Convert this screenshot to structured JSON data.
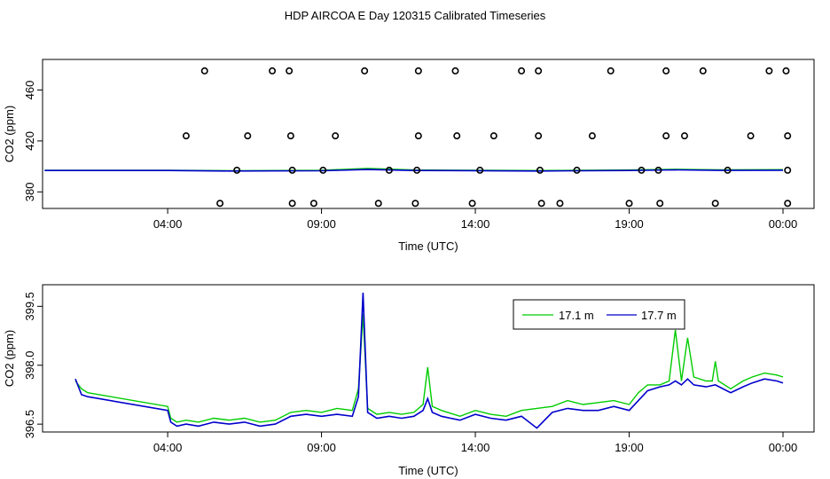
{
  "title": "HDP AIRCOA E  Day 120315  Calibrated Timeseries",
  "chart_data": [
    {
      "type": "scatter",
      "xlabel": "Time (UTC)",
      "ylabel": "CO2 (ppm)",
      "xlim": [
        0,
        24.2
      ],
      "ylim": [
        367,
        484
      ],
      "xticks": [
        {
          "v": 4,
          "label": "04:00"
        },
        {
          "v": 9,
          "label": "09:00"
        },
        {
          "v": 14,
          "label": "14:00"
        },
        {
          "v": 19,
          "label": "19:00"
        },
        {
          "v": 24,
          "label": "00:00"
        }
      ],
      "yticks": [
        {
          "v": 380,
          "label": "380"
        },
        {
          "v": 420,
          "label": "420"
        },
        {
          "v": 460,
          "label": "460"
        }
      ],
      "series": [
        {
          "color": "#00cc00",
          "points": [
            [
              0,
              397.0
            ],
            [
              4,
              397.0
            ],
            [
              6,
              396.7
            ],
            [
              9,
              397.0
            ],
            [
              10.5,
              398.5
            ],
            [
              12,
              397.2
            ],
            [
              14,
              397.0
            ],
            [
              16,
              396.8
            ],
            [
              19,
              397.2
            ],
            [
              20.5,
              397.8
            ],
            [
              22,
              397.3
            ],
            [
              24,
              397.5
            ]
          ]
        },
        {
          "color": "#0000cc",
          "points": [
            [
              0,
              396.8
            ],
            [
              4,
              396.8
            ],
            [
              6,
              396.4
            ],
            [
              9,
              396.6
            ],
            [
              10.5,
              397.6
            ],
            [
              12,
              396.8
            ],
            [
              14,
              396.7
            ],
            [
              16,
              396.4
            ],
            [
              19,
              396.8
            ],
            [
              20.5,
              397.3
            ],
            [
              22,
              396.9
            ],
            [
              24,
              397.0
            ]
          ]
        }
      ],
      "outliers": [
        [
          5.2,
          475
        ],
        [
          7.4,
          475
        ],
        [
          7.95,
          475
        ],
        [
          10.4,
          475
        ],
        [
          12.15,
          475
        ],
        [
          13.35,
          475
        ],
        [
          15.5,
          475
        ],
        [
          16.05,
          475
        ],
        [
          18.4,
          475
        ],
        [
          20.2,
          475
        ],
        [
          21.4,
          475
        ],
        [
          23.55,
          475
        ],
        [
          24.1,
          475
        ],
        [
          4.6,
          424
        ],
        [
          6.6,
          424
        ],
        [
          8.0,
          424
        ],
        [
          9.45,
          424
        ],
        [
          12.15,
          424
        ],
        [
          13.4,
          424
        ],
        [
          14.6,
          424
        ],
        [
          16.05,
          424
        ],
        [
          17.8,
          424
        ],
        [
          20.2,
          424
        ],
        [
          20.8,
          424
        ],
        [
          22.95,
          424
        ],
        [
          24.15,
          424
        ],
        [
          6.25,
          397
        ],
        [
          8.05,
          397
        ],
        [
          9.05,
          397
        ],
        [
          11.2,
          397
        ],
        [
          12.1,
          397
        ],
        [
          14.15,
          397
        ],
        [
          16.1,
          397
        ],
        [
          17.3,
          397
        ],
        [
          19.4,
          397
        ],
        [
          19.95,
          397
        ],
        [
          22.2,
          397
        ],
        [
          24.15,
          397
        ],
        [
          5.7,
          371
        ],
        [
          8.05,
          371
        ],
        [
          8.75,
          371
        ],
        [
          10.85,
          371
        ],
        [
          12.05,
          371
        ],
        [
          13.9,
          371
        ],
        [
          16.15,
          371
        ],
        [
          16.75,
          371
        ],
        [
          19.0,
          371
        ],
        [
          20.0,
          371
        ],
        [
          21.8,
          371
        ],
        [
          24.15,
          371
        ]
      ]
    },
    {
      "type": "line",
      "xlabel": "Time (UTC)",
      "ylabel": "CO2 (ppm)",
      "xlim": [
        0,
        24.2
      ],
      "ylim": [
        396.3,
        400.05
      ],
      "xticks": [
        {
          "v": 4,
          "label": "04:00"
        },
        {
          "v": 9,
          "label": "09:00"
        },
        {
          "v": 14,
          "label": "14:00"
        },
        {
          "v": 19,
          "label": "19:00"
        },
        {
          "v": 24,
          "label": "00:00"
        }
      ],
      "yticks": [
        {
          "v": 396.5,
          "label": "396.5"
        },
        {
          "v": 398.0,
          "label": "398.0"
        },
        {
          "v": 399.5,
          "label": "399.5"
        }
      ],
      "legend_position": "top-right",
      "series": [
        {
          "name": "17.1 m",
          "color": "#00cc00",
          "points": [
            [
              1.0,
              397.6
            ],
            [
              1.2,
              397.4
            ],
            [
              1.4,
              397.3
            ],
            [
              4.0,
              396.95
            ],
            [
              4.1,
              396.65
            ],
            [
              4.3,
              396.55
            ],
            [
              4.6,
              396.6
            ],
            [
              5.0,
              396.55
            ],
            [
              5.5,
              396.65
            ],
            [
              6.0,
              396.6
            ],
            [
              6.5,
              396.65
            ],
            [
              7.0,
              396.55
            ],
            [
              7.5,
              396.6
            ],
            [
              8.0,
              396.8
            ],
            [
              8.5,
              396.85
            ],
            [
              9.0,
              396.8
            ],
            [
              9.5,
              396.9
            ],
            [
              10.0,
              396.85
            ],
            [
              10.2,
              397.4
            ],
            [
              10.35,
              399.3
            ],
            [
              10.5,
              396.9
            ],
            [
              10.8,
              396.75
            ],
            [
              11.2,
              396.8
            ],
            [
              11.6,
              396.75
            ],
            [
              12.0,
              396.8
            ],
            [
              12.3,
              397.0
            ],
            [
              12.45,
              397.95
            ],
            [
              12.6,
              396.95
            ],
            [
              12.9,
              396.85
            ],
            [
              13.5,
              396.7
            ],
            [
              14.0,
              396.85
            ],
            [
              14.5,
              396.75
            ],
            [
              15.0,
              396.7
            ],
            [
              15.5,
              396.85
            ],
            [
              16.0,
              396.9
            ],
            [
              16.5,
              396.95
            ],
            [
              17.0,
              397.1
            ],
            [
              17.5,
              397.0
            ],
            [
              18.0,
              397.05
            ],
            [
              18.5,
              397.1
            ],
            [
              19.0,
              397.0
            ],
            [
              19.3,
              397.3
            ],
            [
              19.6,
              397.5
            ],
            [
              20.0,
              397.5
            ],
            [
              20.3,
              397.6
            ],
            [
              20.5,
              398.9
            ],
            [
              20.7,
              397.6
            ],
            [
              20.9,
              398.7
            ],
            [
              21.1,
              397.7
            ],
            [
              21.5,
              397.6
            ],
            [
              21.7,
              397.6
            ],
            [
              21.8,
              398.1
            ],
            [
              21.9,
              397.6
            ],
            [
              22.3,
              397.4
            ],
            [
              22.7,
              397.6
            ],
            [
              23.0,
              397.7
            ],
            [
              23.4,
              397.8
            ],
            [
              23.8,
              397.75
            ],
            [
              24.0,
              397.7
            ]
          ]
        },
        {
          "name": "17.7 m",
          "color": "#0000cc",
          "points": [
            [
              1.0,
              397.65
            ],
            [
              1.2,
              397.25
            ],
            [
              1.4,
              397.2
            ],
            [
              4.0,
              396.85
            ],
            [
              4.1,
              396.55
            ],
            [
              4.3,
              396.45
            ],
            [
              4.6,
              396.5
            ],
            [
              5.0,
              396.45
            ],
            [
              5.5,
              396.55
            ],
            [
              6.0,
              396.5
            ],
            [
              6.5,
              396.55
            ],
            [
              7.0,
              396.45
            ],
            [
              7.5,
              396.5
            ],
            [
              8.0,
              396.7
            ],
            [
              8.5,
              396.75
            ],
            [
              9.0,
              396.7
            ],
            [
              9.5,
              396.75
            ],
            [
              10.0,
              396.7
            ],
            [
              10.2,
              397.2
            ],
            [
              10.35,
              399.85
            ],
            [
              10.5,
              396.8
            ],
            [
              10.8,
              396.65
            ],
            [
              11.2,
              396.7
            ],
            [
              11.6,
              396.65
            ],
            [
              12.0,
              396.7
            ],
            [
              12.3,
              396.85
            ],
            [
              12.45,
              397.15
            ],
            [
              12.6,
              396.8
            ],
            [
              12.9,
              396.7
            ],
            [
              13.5,
              396.6
            ],
            [
              14.0,
              396.75
            ],
            [
              14.5,
              396.65
            ],
            [
              15.0,
              396.6
            ],
            [
              15.5,
              396.7
            ],
            [
              16.0,
              396.4
            ],
            [
              16.5,
              396.8
            ],
            [
              17.0,
              396.9
            ],
            [
              17.5,
              396.85
            ],
            [
              18.0,
              396.85
            ],
            [
              18.5,
              396.95
            ],
            [
              19.0,
              396.85
            ],
            [
              19.3,
              397.1
            ],
            [
              19.6,
              397.35
            ],
            [
              20.0,
              397.45
            ],
            [
              20.3,
              397.5
            ],
            [
              20.5,
              397.6
            ],
            [
              20.7,
              397.5
            ],
            [
              20.9,
              397.65
            ],
            [
              21.1,
              397.5
            ],
            [
              21.5,
              397.45
            ],
            [
              21.8,
              397.5
            ],
            [
              22.3,
              397.3
            ],
            [
              22.7,
              397.45
            ],
            [
              23.0,
              397.55
            ],
            [
              23.4,
              397.65
            ],
            [
              23.8,
              397.6
            ],
            [
              24.0,
              397.55
            ]
          ]
        }
      ]
    }
  ]
}
